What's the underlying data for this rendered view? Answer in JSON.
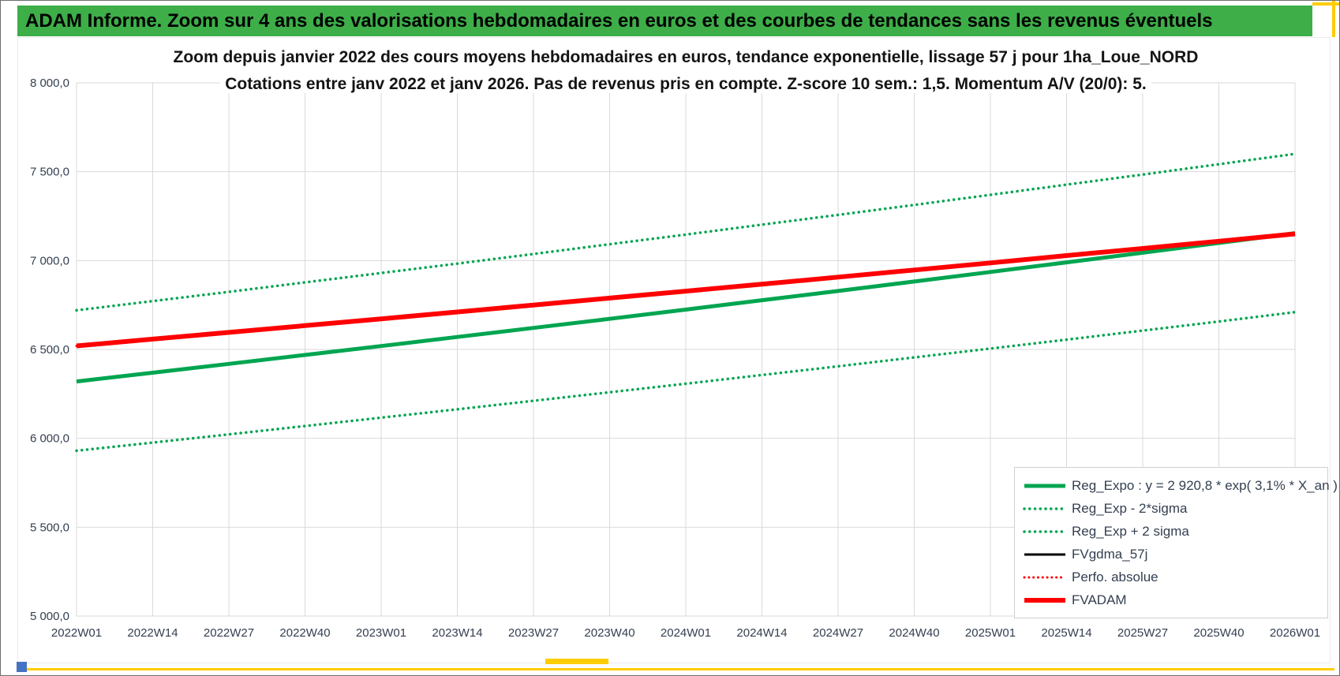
{
  "header": {
    "title": "ADAM Informe. Zoom sur 4 ans des valorisations hebdomadaires en euros et des courbes de tendances sans les revenus éventuels"
  },
  "colors": {
    "header_bg": "#3DAE48",
    "accent_yellow": "#FFCC00",
    "handle_blue": "#4472C4",
    "grid": "#D9D9D9",
    "tick_text": "#333F50",
    "series_green": "#00A550",
    "series_red": "#FF0000",
    "series_black": "#000000"
  },
  "chart_data": {
    "type": "line",
    "title": "Zoom depuis janvier 2022 des cours moyens hebdomadaires en euros, tendance exponentielle, lissage 57 j pour 1ha_Loue_NORD",
    "subtitle": "Cotations entre janv 2022 et janv 2026. Pas de revenus pris en compte. Z-score 10 sem.: 1,5. Momentum A/V (20/0): 5.",
    "xlabel": "",
    "ylabel": "",
    "ylim": [
      5000,
      8000
    ],
    "grid": true,
    "legend_position": "inside-bottom-right",
    "y_ticks": [
      {
        "value": 8000,
        "label": "8 000,0"
      },
      {
        "value": 7500,
        "label": "7 500,0"
      },
      {
        "value": 7000,
        "label": "7 000,0"
      },
      {
        "value": 6500,
        "label": "6 500,0"
      },
      {
        "value": 6000,
        "label": "6 000,0"
      },
      {
        "value": 5500,
        "label": "5 500,0"
      },
      {
        "value": 5000,
        "label": "5 000,0"
      }
    ],
    "x_ticks": [
      "2022W01",
      "2022W14",
      "2022W27",
      "2022W40",
      "2023W01",
      "2023W14",
      "2023W27",
      "2023W40",
      "2024W01",
      "2024W14",
      "2024W27",
      "2024W40",
      "2025W01",
      "2025W14",
      "2025W27",
      "2025W40",
      "2026W01"
    ],
    "series": [
      {
        "name": "Reg_Expo : y = 2 920,8 * exp( 3,1% *  X_an )",
        "color": "#00A550",
        "style": "solid",
        "width": 5,
        "values": [
          6320,
          6369,
          6419,
          6469,
          6519,
          6570,
          6621,
          6672,
          6724,
          6777,
          6829,
          6882,
          6936,
          6990,
          7044,
          7099,
          7154
        ]
      },
      {
        "name": "Reg_Exp - 2*sigma",
        "color": "#00A550",
        "style": "dotted",
        "width": 3.5,
        "values": [
          5930,
          5976,
          6022,
          6069,
          6116,
          6163,
          6211,
          6259,
          6307,
          6356,
          6405,
          6455,
          6505,
          6555,
          6606,
          6657,
          6710
        ]
      },
      {
        "name": "Reg_Exp + 2 sigma",
        "color": "#00A550",
        "style": "dotted",
        "width": 3.5,
        "values": [
          6720,
          6772,
          6824,
          6877,
          6930,
          6983,
          7037,
          7092,
          7146,
          7202,
          7257,
          7313,
          7370,
          7427,
          7484,
          7542,
          7600
        ]
      },
      {
        "name": "FVgdma_57j",
        "color": "#000000",
        "style": "solid",
        "width": 3,
        "values": [
          6520,
          6558,
          6596,
          6634,
          6672,
          6711,
          6750,
          6789,
          6828,
          6867,
          6907,
          6947,
          6987,
          7028,
          7068,
          7109,
          7150
        ]
      },
      {
        "name": "Perfo. absolue",
        "color": "#FF0000",
        "style": "dotted",
        "width": 3,
        "values": [
          6520,
          6558,
          6596,
          6634,
          6672,
          6711,
          6750,
          6789,
          6828,
          6867,
          6907,
          6947,
          6987,
          7028,
          7068,
          7109,
          7150
        ]
      },
      {
        "name": "FVADAM",
        "color": "#FF0000",
        "style": "solid",
        "width": 6,
        "values": [
          6520,
          6558,
          6596,
          6634,
          6672,
          6711,
          6750,
          6789,
          6828,
          6867,
          6907,
          6947,
          6987,
          7028,
          7068,
          7109,
          7150
        ]
      }
    ]
  }
}
